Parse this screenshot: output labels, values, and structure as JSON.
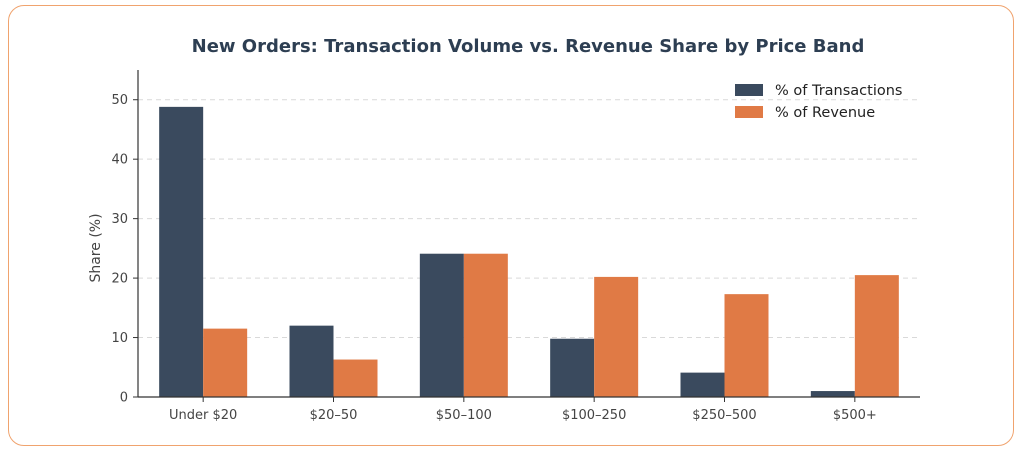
{
  "chart_data": {
    "type": "bar",
    "title": "New Orders: Transaction Volume vs. Revenue Share by Price Band",
    "xlabel": "",
    "ylabel": "Share (%)",
    "ylim": [
      0,
      55
    ],
    "yticks": [
      "0",
      "10",
      "20",
      "30",
      "40",
      "50"
    ],
    "grid": "horizontal dashed",
    "legend_position": "top-right",
    "categories": [
      "Under $20",
      "$20–50",
      "$50–100",
      "$100–250",
      "$250–500",
      "$500+"
    ],
    "series": [
      {
        "name": "% of Transactions",
        "color": "#3a4a5e",
        "values": [
          48.8,
          12.0,
          24.1,
          9.8,
          4.1,
          1.0
        ]
      },
      {
        "name": "% of Revenue",
        "color": "#e07a45",
        "values": [
          11.5,
          6.3,
          24.1,
          20.2,
          17.3,
          20.5
        ]
      }
    ]
  }
}
